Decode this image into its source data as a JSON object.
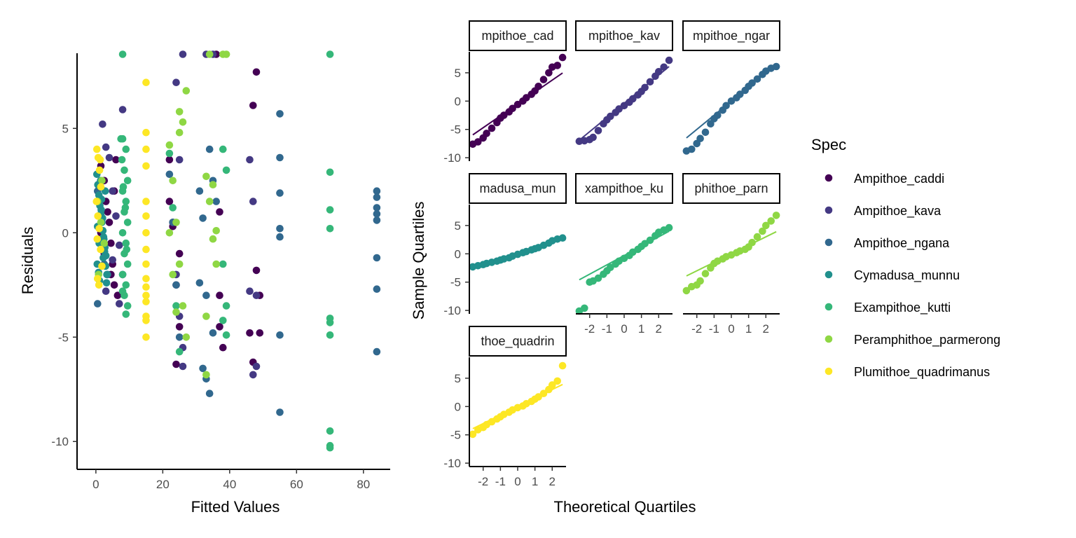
{
  "colors": {
    "Ampithoe_caddi": "#440154",
    "Ampithoe_kava": "#443983",
    "Ampithoe_ngana": "#31688e",
    "Cymadusa_munnu": "#21908d",
    "Exampithoe_kutti": "#35b779",
    "Peramphithoe_parmerong": "#8fd744",
    "Plumithoe_quadrimanus": "#fde725"
  },
  "legend": {
    "title": "Spec",
    "position": "right",
    "entries": [
      "Ampithoe_caddi",
      "Ampithoe_kava",
      "Ampithoe_ngana",
      "Cymadusa_munnu",
      "Exampithoe_kutti",
      "Peramphithoe_parmerong",
      "Plumithoe_quadrimanus"
    ]
  },
  "chart_data": [
    {
      "type": "scatter",
      "xlabel": "Fitted Values",
      "ylabel": "Residuals",
      "xlim": [
        -5,
        88
      ],
      "ylim": [
        -11.2,
        8.6
      ],
      "xticks": [
        0,
        20,
        40,
        60,
        80
      ],
      "yticks": [
        5,
        0,
        -5,
        -10
      ],
      "ytick_labels": [
        "5",
        "0",
        "-5",
        "-10"
      ],
      "grid": false,
      "series": [
        {
          "name": "Ampithoe_caddi",
          "x": [
            1.5,
            2.5,
            3,
            4,
            4.5,
            5,
            5.5,
            6,
            6.5,
            1.5,
            2.5,
            3.5,
            4.5,
            5.5,
            22,
            23,
            24,
            25,
            37,
            37,
            37,
            38,
            46,
            47,
            48,
            49,
            49,
            22,
            23,
            24,
            25,
            36,
            47,
            48
          ],
          "y": [
            3.2,
            2.5,
            1.5,
            0.5,
            -0.5,
            -1.5,
            -2.5,
            3.5,
            -3,
            0,
            -1,
            1,
            -2,
            2,
            1.5,
            0.5,
            -2.5,
            -4.5,
            1,
            -3,
            -4.5,
            -5.5,
            -4.8,
            -6.2,
            -1.8,
            -3,
            -4.8,
            3.5,
            0.3,
            -6.3,
            -1,
            8.6,
            6.1,
            7.7
          ]
        },
        {
          "name": "Ampithoe_kava",
          "x": [
            2,
            3,
            4,
            5,
            6,
            7,
            8,
            3,
            5,
            7,
            24,
            25,
            26,
            24,
            25,
            26,
            46,
            47,
            48,
            46,
            47,
            48,
            33,
            35,
            26,
            8
          ],
          "y": [
            5.2,
            4.1,
            3.6,
            2,
            0.8,
            -0.6,
            -2,
            -2.8,
            -1.3,
            -3.4,
            7.2,
            3.5,
            -6.4,
            -2,
            -4,
            -5.5,
            3.5,
            1.5,
            -3,
            -2.8,
            -6.8,
            -6.4,
            8.6,
            8.6,
            8.6,
            5.9
          ]
        },
        {
          "name": "Ampithoe_ngana",
          "x": [
            0.5,
            1.5,
            2.5,
            3.5,
            0.5,
            1.5,
            2.5,
            22,
            23,
            24,
            25,
            31,
            32,
            33,
            34,
            35,
            36,
            31,
            32,
            33,
            34,
            35,
            55,
            55,
            55,
            55,
            55,
            55,
            55,
            84,
            84,
            84,
            84,
            84,
            84,
            84,
            84
          ],
          "y": [
            2,
            0.8,
            -0.8,
            -2,
            -3.4,
            2.5,
            -1.5,
            2.8,
            0.5,
            -2.5,
            -5,
            2,
            -6.5,
            -7,
            -7.7,
            -4.8,
            1.5,
            -2.4,
            0.7,
            -3,
            4,
            2.5,
            5.7,
            3.6,
            1.9,
            0.2,
            -0.2,
            -4.9,
            -8.6,
            2,
            1.7,
            1.2,
            0.9,
            0.6,
            -1.2,
            -2.7,
            -5.7
          ]
        },
        {
          "name": "Cymadusa_munnu",
          "x": [
            0.3,
            0.6,
            0.9,
            1.2,
            1.5,
            1.8,
            2.1,
            2.4,
            2.7,
            3,
            0.4,
            0.8,
            1.1,
            1.4,
            1.7,
            2,
            2.3,
            2.6,
            2.9,
            3.2,
            0.5,
            1,
            1.6,
            2.2,
            2.8,
            3.3
          ],
          "y": [
            2.8,
            2.3,
            1.8,
            1.3,
            0.9,
            0.5,
            0.1,
            -0.3,
            -0.7,
            -1.1,
            -1.5,
            -1.9,
            -2.3,
            2.5,
            1.6,
            0.7,
            -0.2,
            -0.9,
            -1.6,
            -2.4,
            0.3,
            -0.5,
            1.1,
            -1.2,
            2,
            -2
          ]
        },
        {
          "name": "Exampithoe_kutti",
          "x": [
            8,
            9,
            8.5,
            9.5,
            8,
            9,
            8.5,
            9.5,
            8,
            9,
            8.5,
            9.5,
            8,
            9,
            8.5,
            9.5,
            9,
            7.5,
            7.8,
            8.2,
            8.8,
            9.2,
            8,
            8,
            22,
            23,
            24,
            25,
            38,
            39,
            38,
            39,
            38,
            39,
            70,
            70,
            70,
            70,
            70,
            70,
            70,
            70,
            70,
            70
          ],
          "y": [
            4.5,
            4,
            3,
            2.5,
            2,
            1.5,
            1,
            0.5,
            0,
            -0.5,
            -1,
            -1.5,
            -2,
            -2.5,
            -3,
            -3.5,
            -3.9,
            4.5,
            3.5,
            2.2,
            1.2,
            -0.8,
            -2.8,
            8.6,
            3.8,
            1.2,
            -3.5,
            -5.7,
            4,
            3,
            -1.5,
            -3.5,
            -4.2,
            -4.9,
            8.6,
            2.9,
            1.1,
            0.2,
            -4.1,
            -4.3,
            -4.9,
            -9.5,
            -10.2,
            -10.3
          ]
        },
        {
          "name": "Peramphithoe_parmerong",
          "x": [
            0.5,
            1.5,
            2.5,
            0.8,
            1.8,
            22,
            23,
            24,
            25,
            26,
            27,
            22,
            23,
            24,
            25,
            26,
            33,
            34,
            35,
            36,
            33,
            34,
            35,
            36,
            38,
            39,
            33,
            27,
            25
          ],
          "y": [
            1.5,
            0.5,
            -0.5,
            -2,
            2.5,
            4.2,
            2.5,
            0.5,
            -1.5,
            -3.5,
            -5,
            0,
            -2,
            -3.8,
            4.8,
            5.3,
            2.7,
            1.5,
            -0.3,
            -1.5,
            -4,
            8.6,
            2.3,
            0.1,
            8.6,
            8.6,
            -6.8,
            6.8,
            5.8
          ]
        },
        {
          "name": "Plumithoe_quadrimanus",
          "x": [
            0.3,
            0.7,
            1.1,
            1.5,
            0.2,
            0.6,
            1,
            1.4,
            1.8,
            0.5,
            0.9,
            1.3,
            0.4,
            15,
            15,
            15,
            15,
            15,
            15,
            15,
            15,
            15,
            15,
            15,
            15,
            15,
            15,
            15,
            15
          ],
          "y": [
            4,
            3.6,
            3,
            2.2,
            1.5,
            0.8,
            0.2,
            -0.8,
            -1.6,
            -2.2,
            -2.5,
            3.5,
            -0.3,
            7.2,
            4.8,
            4,
            3.2,
            1.5,
            0.8,
            0,
            -0.8,
            -1.5,
            -2.2,
            -2.6,
            -3,
            -4,
            -4.2,
            -5,
            -3.3
          ]
        }
      ]
    },
    {
      "type": "scatter",
      "subtype": "qq-facets",
      "xlabel": "Theoretical Quartiles",
      "ylabel": "Sample Quartiles",
      "xlim": [
        -2.8,
        2.8
      ],
      "ylim": [
        -10.6,
        8.7
      ],
      "xticks": [
        -2,
        -1,
        0,
        1,
        2
      ],
      "xtick_labels": [
        "-2",
        "-1",
        "0",
        "1",
        "2"
      ],
      "yticks": [
        5,
        0,
        -5,
        -10
      ],
      "ytick_labels": [
        "5",
        "0",
        "-5",
        "-10"
      ],
      "grid": false,
      "facets": [
        {
          "strip": "Ampithoe_caddi",
          "strip_visible": "mpithoe_cad",
          "series": "Ampithoe_caddi",
          "theoretical": [
            -2.6,
            -2.3,
            -2,
            -1.8,
            -1.5,
            -1.2,
            -1,
            -0.8,
            -0.5,
            -0.3,
            0,
            0.3,
            0.5,
            0.8,
            1,
            1.2,
            1.5,
            1.8,
            2,
            2.3,
            2.6
          ],
          "sample": [
            -7.6,
            -7.2,
            -6.5,
            -5.7,
            -4.8,
            -3.8,
            -3,
            -2.5,
            -1.9,
            -1.3,
            -0.6,
            0,
            0.6,
            1.2,
            1.8,
            2.6,
            3.8,
            5,
            6,
            6.3,
            7.7
          ],
          "line": {
            "intercept": -0.5,
            "slope": 2.1
          }
        },
        {
          "strip": "Ampithoe_kava",
          "strip_visible": "mpithoe_kav",
          "series": "Ampithoe_kava",
          "theoretical": [
            -2.6,
            -2.3,
            -2,
            -1.8,
            -1.5,
            -1.2,
            -1,
            -0.8,
            -0.5,
            -0.3,
            0,
            0.3,
            0.5,
            0.8,
            1,
            1.2,
            1.5,
            1.8,
            2,
            2.3,
            2.6
          ],
          "sample": [
            -7.1,
            -7,
            -6.8,
            -6.4,
            -5.2,
            -4,
            -3.3,
            -2.7,
            -2,
            -1.4,
            -0.8,
            -0.2,
            0.4,
            1.1,
            1.7,
            2.4,
            3.4,
            4.4,
            5.2,
            6,
            7.2
          ],
          "line": {
            "intercept": -0.4,
            "slope": 2.5
          }
        },
        {
          "strip": "Ampithoe_ngana",
          "strip_visible": "mpithoe_ngar",
          "series": "Ampithoe_ngana",
          "theoretical": [
            -2.6,
            -2.3,
            -2,
            -1.8,
            -1.5,
            -1.2,
            -1,
            -0.8,
            -0.5,
            -0.3,
            0,
            0.3,
            0.5,
            0.8,
            1,
            1.2,
            1.5,
            1.8,
            2,
            2.3,
            2.6
          ],
          "sample": [
            -8.8,
            -8.5,
            -7.5,
            -6.6,
            -5.5,
            -4,
            -3.1,
            -2.5,
            -1.6,
            -0.8,
            0,
            0.6,
            1.2,
            1.9,
            2.6,
            3.2,
            3.9,
            4.7,
            5.3,
            5.8,
            6.1
          ],
          "line": {
            "intercept": 0,
            "slope": 2.5
          }
        },
        {
          "strip": "Cymadusa_munnu",
          "strip_visible": "madusa_mun",
          "series": "Cymadusa_munnu",
          "theoretical": [
            -2.6,
            -2.3,
            -2,
            -1.8,
            -1.5,
            -1.2,
            -1,
            -0.8,
            -0.5,
            -0.3,
            0,
            0.3,
            0.5,
            0.8,
            1,
            1.2,
            1.5,
            1.8,
            2,
            2.3,
            2.6
          ],
          "sample": [
            -2.3,
            -2.1,
            -1.9,
            -1.7,
            -1.5,
            -1.3,
            -1.1,
            -0.9,
            -0.7,
            -0.4,
            -0.1,
            0.2,
            0.4,
            0.7,
            0.9,
            1.1,
            1.5,
            1.9,
            2.3,
            2.6,
            2.8
          ],
          "line": {
            "intercept": 0,
            "slope": 1
          }
        },
        {
          "strip": "Exampithoe_kutti",
          "strip_visible": "xampithoe_ku",
          "series": "Exampithoe_kutti",
          "theoretical": [
            -2.6,
            -2.3,
            -2,
            -1.8,
            -1.5,
            -1.2,
            -1,
            -0.8,
            -0.5,
            -0.3,
            0,
            0.3,
            0.5,
            0.8,
            1,
            1.2,
            1.5,
            1.8,
            2,
            2.3,
            2.6
          ],
          "sample": [
            -10.1,
            -9.6,
            -5,
            -4.8,
            -4.3,
            -3.6,
            -3,
            -2.4,
            -1.8,
            -1.3,
            -0.8,
            -0.3,
            0.3,
            0.8,
            1.3,
            1.8,
            2.4,
            3.2,
            3.8,
            4.2,
            4.6
          ],
          "line": {
            "intercept": -0.3,
            "slope": 1.65
          }
        },
        {
          "strip": "Peramphithoe_parmerong",
          "strip_visible": "phithoe_parn",
          "series": "Peramphithoe_parmerong",
          "theoretical": [
            -2.6,
            -2.3,
            -2,
            -1.8,
            -1.5,
            -1.2,
            -1,
            -0.8,
            -0.5,
            -0.3,
            0,
            0.3,
            0.5,
            0.8,
            1,
            1.2,
            1.5,
            1.8,
            2,
            2.3,
            2.6
          ],
          "sample": [
            -6.5,
            -5.8,
            -5.5,
            -4.8,
            -3.5,
            -2.5,
            -1.7,
            -1.3,
            -0.9,
            -0.5,
            -0.2,
            0.2,
            0.5,
            0.8,
            1.2,
            2,
            3,
            4,
            5,
            5.8,
            6.8
          ],
          "line": {
            "intercept": 0,
            "slope": 1.5
          }
        },
        {
          "strip": "Plumithoe_quadrimanus",
          "strip_visible": "thoe_quadrin",
          "series": "Plumithoe_quadrimanus",
          "theoretical": [
            -2.6,
            -2.3,
            -2,
            -1.8,
            -1.5,
            -1.2,
            -1,
            -0.8,
            -0.5,
            -0.3,
            0,
            0.3,
            0.5,
            0.8,
            1,
            1.2,
            1.5,
            1.8,
            2,
            2.3,
            2.6
          ],
          "sample": [
            -4.9,
            -4.1,
            -3.7,
            -3.2,
            -2.7,
            -2.2,
            -1.8,
            -1.4,
            -1,
            -0.6,
            -0.2,
            0.1,
            0.5,
            0.9,
            1.3,
            1.7,
            2.3,
            3,
            3.8,
            4.5,
            7.2
          ],
          "line": {
            "intercept": 0,
            "slope": 1.5
          }
        }
      ]
    }
  ]
}
